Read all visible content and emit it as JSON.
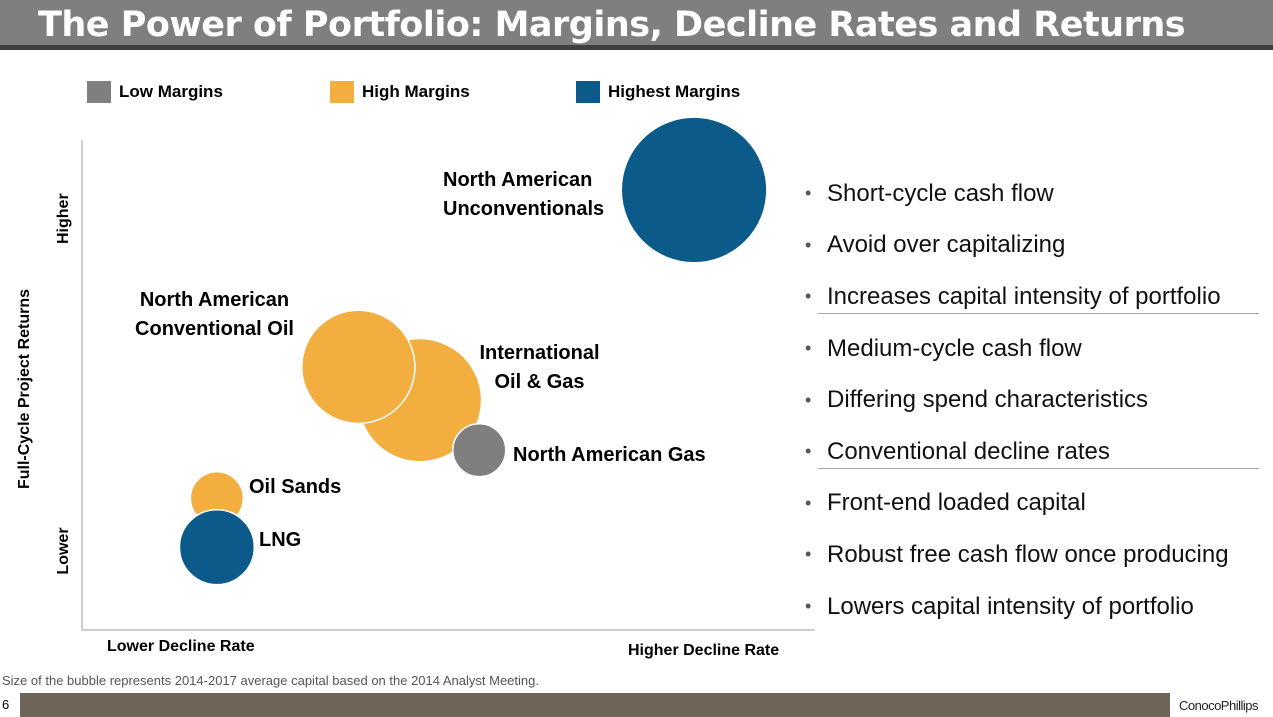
{
  "title": "The Power of Portfolio: Margins, Decline Rates and Returns",
  "legend": [
    {
      "label": "Low Margins",
      "color": "#7f7f7f"
    },
    {
      "label": "High Margins",
      "color": "#f2ae3f"
    },
    {
      "label": "Highest Margins",
      "color": "#0b5a8a"
    }
  ],
  "chart_data": {
    "type": "scatter",
    "subtype": "bubble",
    "xlabel_low": "Lower Decline Rate",
    "xlabel_high": "Higher Decline Rate",
    "ylabel": "Full-Cycle Project Returns",
    "ylabel_high": "Higher",
    "ylabel_low": "Lower",
    "xlim": [
      0,
      10
    ],
    "ylim": [
      0,
      10
    ],
    "grid": false,
    "points": [
      {
        "name": "North American Unconventionals",
        "x": 8.35,
        "y": 8.98,
        "size": 53,
        "margin": "Highest Margins",
        "color": "#0b5a8a"
      },
      {
        "name": "International Oil & Gas",
        "x": 4.61,
        "y": 4.69,
        "size": 38,
        "margin": "High Margins",
        "color": "#f2ae3f"
      },
      {
        "name": "North American Conventional Oil",
        "x": 3.77,
        "y": 5.37,
        "size": 32,
        "margin": "High Margins",
        "color": "#f2ae3f"
      },
      {
        "name": "North American Gas",
        "x": 5.42,
        "y": 3.67,
        "size": 7,
        "margin": "Low Margins",
        "color": "#7f7f7f"
      },
      {
        "name": "LNG",
        "x": 1.84,
        "y": 1.69,
        "size": 14,
        "margin": "Highest Margins",
        "color": "#0b5a8a"
      },
      {
        "name": "Oil Sands",
        "x": 1.84,
        "y": 2.69,
        "size": 7,
        "margin": "High Margins",
        "color": "#f2ae3f"
      }
    ]
  },
  "labels": {
    "unconv1": "North American",
    "unconv2": "Unconventionals",
    "conv1": "North American",
    "conv2": "Conventional Oil",
    "intl1": "International",
    "intl2": "Oil & Gas",
    "gas": "North American Gas",
    "sands": "Oil Sands",
    "lng": "LNG"
  },
  "bullets": [
    "Short-cycle cash flow",
    "Avoid over capitalizing",
    "Increases capital intensity of portfolio",
    "Medium-cycle cash flow",
    "Differing spend characteristics",
    "Conventional decline rates",
    "Front-end loaded capital",
    "Robust free cash flow once producing",
    "Lowers capital intensity of portfolio"
  ],
  "bullet_symbol": "•",
  "footnote": "Size of the bubble represents 2014-2017 average capital based on the 2014 Analyst Meeting.",
  "page_number": "6",
  "logo": "ConocoPhillips"
}
